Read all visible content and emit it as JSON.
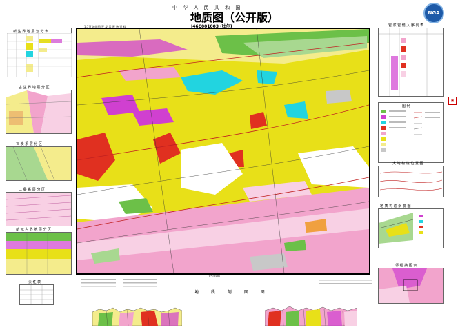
{
  "header": {
    "country_line": "中 华 人 民 共 和 国",
    "title": "地质图（公开版）",
    "sheet_code": "J46C001003 (吐尔)",
    "corner_tag": "1:5万 地质图 开 发 用 原 始 资 料",
    "logo_text": "NGA"
  },
  "left_panels": [
    {
      "id": "stratigraphy-table",
      "title": "新 生 界 地 层 划 分 表"
    },
    {
      "id": "column-1",
      "title": "古 生 界 地 层 分 区"
    },
    {
      "id": "column-2",
      "title": "石 炭 系 层 分 区"
    },
    {
      "id": "column-3",
      "title": "二 叠 系 层 分 区"
    },
    {
      "id": "column-4",
      "title": "新 元 古 界 地 层 分 区"
    },
    {
      "id": "signature-table",
      "title": "责 任 表"
    }
  ],
  "right_panels": [
    {
      "id": "intrusive-sequence",
      "title": "岩 浆 岩 侵 入 序 列 表"
    },
    {
      "id": "legend",
      "title": "图   例"
    },
    {
      "id": "tectonic-sketch",
      "title": "大 地 构 造 位 置 图"
    },
    {
      "id": "fault-sketch",
      "title": "地 质 构 造 纲 要 图"
    },
    {
      "id": "index-map",
      "title": "邻 幅 接 图 表"
    }
  ],
  "bottom": {
    "scale_text": "1:50000",
    "section_title": "地 质 剖 面 图"
  },
  "colors": {
    "yellow": "#e8e018",
    "light_yellow": "#f4ec8c",
    "pink": "#f2a4cc",
    "light_pink": "#f8d0e4",
    "magenta": "#d040d0",
    "cyan": "#22d4e0",
    "red": "#e03020",
    "green": "#6cc048",
    "light_green": "#a8d890",
    "gray": "#c8c8c8",
    "orange": "#f0a040",
    "white": "#ffffff"
  }
}
